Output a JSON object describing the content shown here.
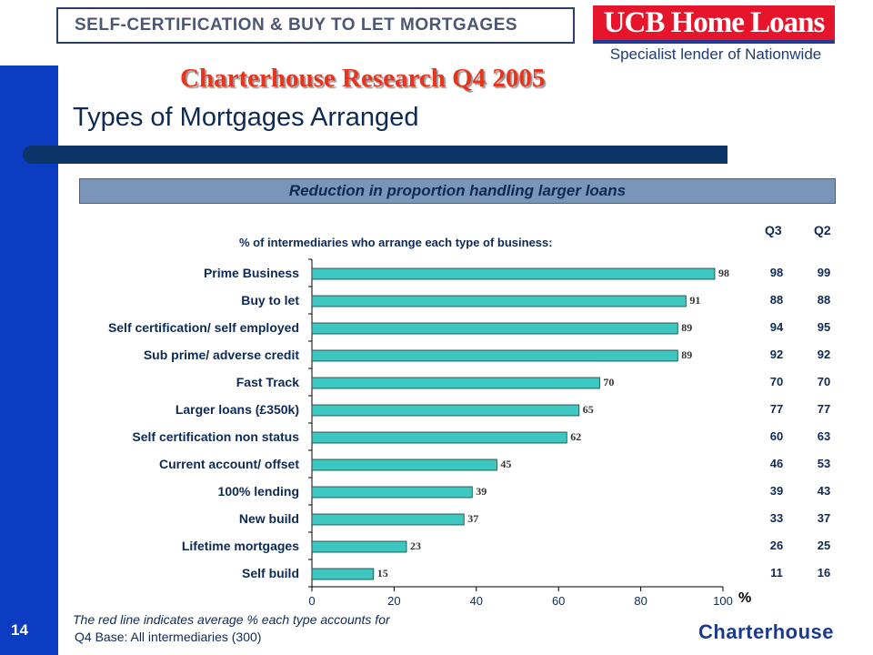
{
  "slide": {
    "number": "14"
  },
  "header": {
    "banner_text": "SELF-CERTIFICATION & BUY TO LET MORTGAGES",
    "logo_text": "UCB Home Loans",
    "logo_tagline": "Specialist lender of Nationwide",
    "research_title": "Charterhouse Research Q4 2005",
    "page_title": "Types of Mortgages Arranged",
    "subtitle": "Reduction in proportion handling larger loans"
  },
  "comparison": {
    "headers": [
      "Q3",
      "Q2"
    ]
  },
  "chart_data": {
    "type": "bar",
    "orientation": "horizontal",
    "title": "% of intermediaries who arrange each type of business:",
    "categories": [
      "Prime Business",
      "Buy to let",
      "Self certification/ self employed",
      "Sub prime/ adverse credit",
      "Fast Track",
      "Larger loans (£350k)",
      "Self certification non status",
      "Current account/ offset",
      "100% lending",
      "New build",
      "Lifetime mortgages",
      "Self build"
    ],
    "series": [
      {
        "name": "Q4",
        "values": [
          98,
          91,
          89,
          89,
          70,
          65,
          62,
          45,
          39,
          37,
          23,
          15
        ]
      },
      {
        "name": "Q3",
        "values": [
          98,
          88,
          94,
          92,
          70,
          77,
          60,
          46,
          39,
          33,
          26,
          11
        ]
      },
      {
        "name": "Q2",
        "values": [
          99,
          88,
          95,
          92,
          70,
          77,
          63,
          53,
          43,
          37,
          25,
          16
        ]
      }
    ],
    "xlabel": "%",
    "xlim": [
      0,
      100
    ],
    "xticks": [
      0,
      20,
      40,
      60,
      80,
      100
    ],
    "bar_color": "#3cc7c0"
  },
  "footer": {
    "note_line1": "The red line indicates average % each type accounts for",
    "note_line2": "Q4  Base: All intermediaries (300)",
    "brand": "Charterhouse"
  }
}
